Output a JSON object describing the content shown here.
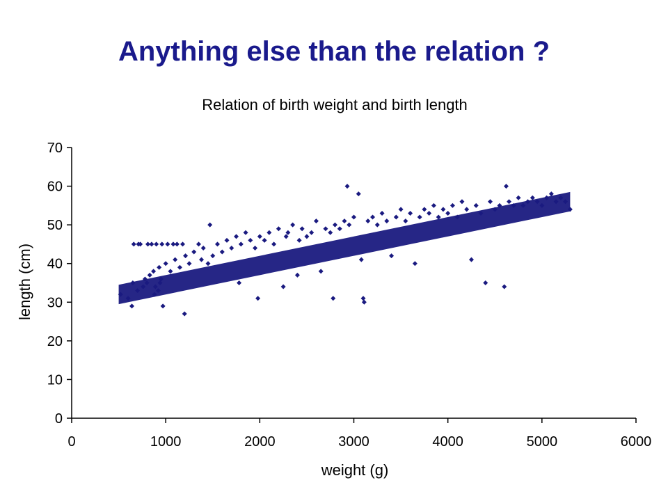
{
  "slide": {
    "title": "Anything else than the relation ?"
  },
  "colors": {
    "title": "#1a1a8c",
    "points": "#1a1a80",
    "axis": "#000000"
  },
  "chart_data": {
    "type": "scatter",
    "title": "Relation of birth weight and birth length",
    "xlabel": "weight (g)",
    "ylabel": "length (cm)",
    "xlim": [
      0,
      6000
    ],
    "ylim": [
      0,
      70
    ],
    "x_ticks": [
      "0",
      "1000",
      "2000",
      "3000",
      "4000",
      "5000",
      "6000"
    ],
    "y_ticks": [
      "0",
      "10",
      "20",
      "30",
      "40",
      "50",
      "60",
      "70"
    ],
    "grid": false,
    "legend": "none",
    "marker": "diamond",
    "trend": {
      "x": [
        500,
        5300
      ],
      "y": [
        32,
        56
      ]
    },
    "points": [
      [
        520,
        32
      ],
      [
        600,
        31
      ],
      [
        640,
        29
      ],
      [
        650,
        35
      ],
      [
        660,
        45
      ],
      [
        700,
        33
      ],
      [
        710,
        45
      ],
      [
        730,
        45
      ],
      [
        760,
        34
      ],
      [
        780,
        36
      ],
      [
        800,
        35
      ],
      [
        810,
        45
      ],
      [
        830,
        37
      ],
      [
        850,
        45
      ],
      [
        870,
        38
      ],
      [
        880,
        32
      ],
      [
        890,
        34
      ],
      [
        900,
        45
      ],
      [
        920,
        33
      ],
      [
        930,
        39
      ],
      [
        940,
        35
      ],
      [
        950,
        36
      ],
      [
        960,
        45
      ],
      [
        970,
        29
      ],
      [
        1000,
        40
      ],
      [
        1020,
        45
      ],
      [
        1050,
        38
      ],
      [
        1080,
        45
      ],
      [
        1100,
        41
      ],
      [
        1120,
        45
      ],
      [
        1150,
        39
      ],
      [
        1180,
        45
      ],
      [
        1200,
        27
      ],
      [
        1210,
        42
      ],
      [
        1250,
        40
      ],
      [
        1300,
        43
      ],
      [
        1350,
        45
      ],
      [
        1380,
        41
      ],
      [
        1400,
        44
      ],
      [
        1450,
        40
      ],
      [
        1470,
        50
      ],
      [
        1500,
        42
      ],
      [
        1550,
        45
      ],
      [
        1600,
        43
      ],
      [
        1650,
        46
      ],
      [
        1700,
        44
      ],
      [
        1750,
        47
      ],
      [
        1780,
        35
      ],
      [
        1800,
        45
      ],
      [
        1850,
        48
      ],
      [
        1900,
        46
      ],
      [
        1950,
        44
      ],
      [
        1980,
        31
      ],
      [
        2000,
        47
      ],
      [
        2050,
        46
      ],
      [
        2100,
        48
      ],
      [
        2150,
        45
      ],
      [
        2200,
        49
      ],
      [
        2250,
        34
      ],
      [
        2280,
        47
      ],
      [
        2300,
        48
      ],
      [
        2350,
        50
      ],
      [
        2400,
        37
      ],
      [
        2420,
        46
      ],
      [
        2450,
        49
      ],
      [
        2500,
        47
      ],
      [
        2550,
        48
      ],
      [
        2600,
        51
      ],
      [
        2650,
        38
      ],
      [
        2700,
        49
      ],
      [
        2750,
        48
      ],
      [
        2780,
        31
      ],
      [
        2800,
        50
      ],
      [
        2850,
        49
      ],
      [
        2900,
        51
      ],
      [
        2930,
        60
      ],
      [
        2950,
        50
      ],
      [
        3000,
        52
      ],
      [
        3050,
        58
      ],
      [
        3080,
        41
      ],
      [
        3100,
        31
      ],
      [
        3110,
        30
      ],
      [
        3150,
        51
      ],
      [
        3200,
        52
      ],
      [
        3250,
        50
      ],
      [
        3300,
        53
      ],
      [
        3350,
        51
      ],
      [
        3400,
        42
      ],
      [
        3450,
        52
      ],
      [
        3500,
        54
      ],
      [
        3550,
        51
      ],
      [
        3600,
        53
      ],
      [
        3650,
        40
      ],
      [
        3700,
        52
      ],
      [
        3750,
        54
      ],
      [
        3800,
        53
      ],
      [
        3850,
        55
      ],
      [
        3900,
        52
      ],
      [
        3950,
        54
      ],
      [
        4000,
        53
      ],
      [
        4050,
        55
      ],
      [
        4100,
        52
      ],
      [
        4150,
        56
      ],
      [
        4200,
        54
      ],
      [
        4250,
        41
      ],
      [
        4300,
        55
      ],
      [
        4350,
        53
      ],
      [
        4400,
        35
      ],
      [
        4450,
        56
      ],
      [
        4500,
        54
      ],
      [
        4550,
        55
      ],
      [
        4600,
        34
      ],
      [
        4620,
        60
      ],
      [
        4650,
        56
      ],
      [
        4700,
        55
      ],
      [
        4750,
        57
      ],
      [
        4800,
        55
      ],
      [
        4850,
        56
      ],
      [
        4900,
        57
      ],
      [
        4950,
        56
      ],
      [
        5000,
        55
      ],
      [
        5050,
        57
      ],
      [
        5100,
        58
      ],
      [
        5150,
        56
      ],
      [
        5200,
        57
      ],
      [
        5250,
        56
      ],
      [
        5300,
        54
      ]
    ]
  }
}
